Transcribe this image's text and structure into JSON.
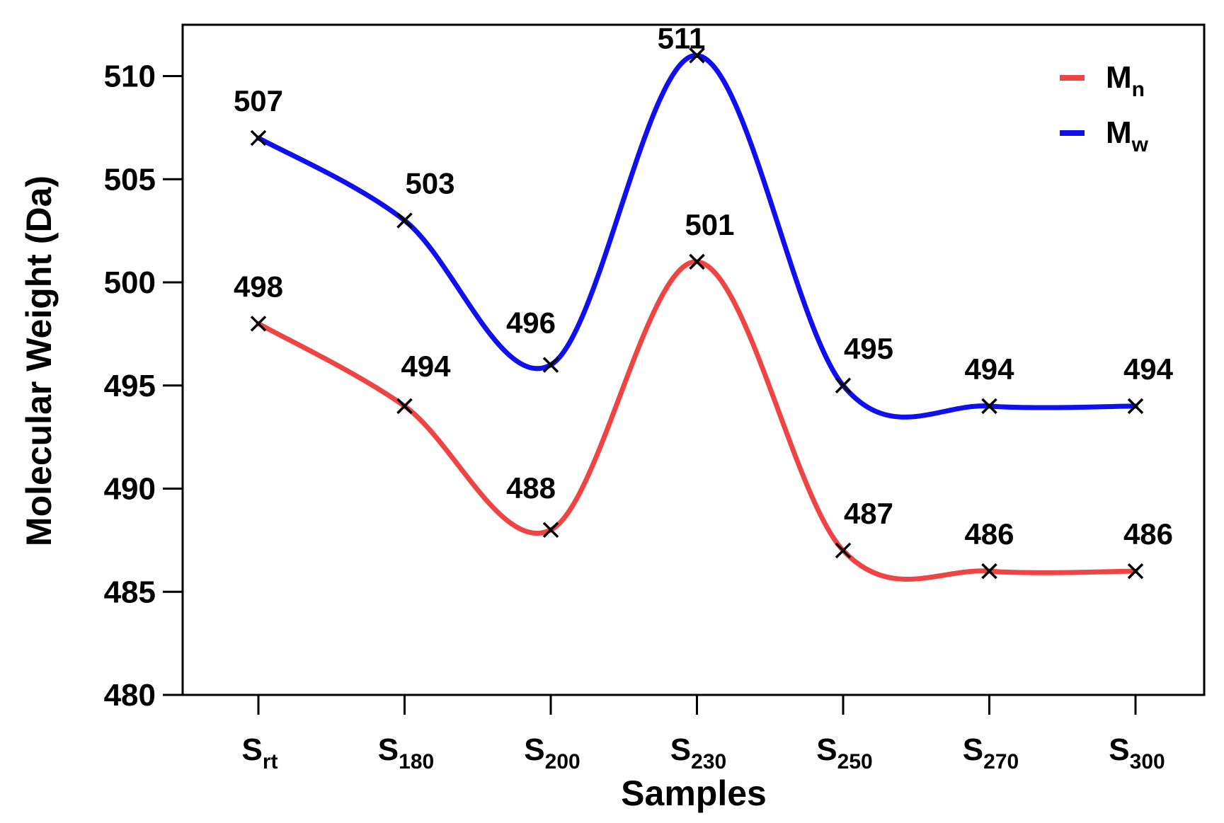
{
  "chart_data": {
    "type": "line",
    "xlabel": "Samples",
    "ylabel": "Molecular Weight (Da)",
    "ylim": [
      480,
      512.5
    ],
    "yticks": [
      "480",
      "485",
      "490",
      "495",
      "500",
      "505",
      "510"
    ],
    "categories": [
      {
        "main": "S",
        "sub": "rt"
      },
      {
        "main": "S",
        "sub": "180"
      },
      {
        "main": "S",
        "sub": "200"
      },
      {
        "main": "S",
        "sub": "230"
      },
      {
        "main": "S",
        "sub": "250"
      },
      {
        "main": "S",
        "sub": "270"
      },
      {
        "main": "S",
        "sub": "300"
      }
    ],
    "legend_position": "top-right",
    "grid": false,
    "series": [
      {
        "name": {
          "main": "M",
          "sub": "n"
        },
        "color": "#ee4444",
        "values": [
          498,
          494,
          488,
          501,
          487,
          486,
          486
        ],
        "labels": [
          "498",
          "494",
          "488",
          "501",
          "487",
          "486",
          "486"
        ]
      },
      {
        "name": {
          "main": "M",
          "sub": "w"
        },
        "color": "#1010ee",
        "values": [
          507,
          503,
          496,
          511,
          495,
          494,
          494
        ],
        "labels": [
          "507",
          "503",
          "496",
          "511",
          "495",
          "494",
          "494"
        ]
      }
    ]
  }
}
